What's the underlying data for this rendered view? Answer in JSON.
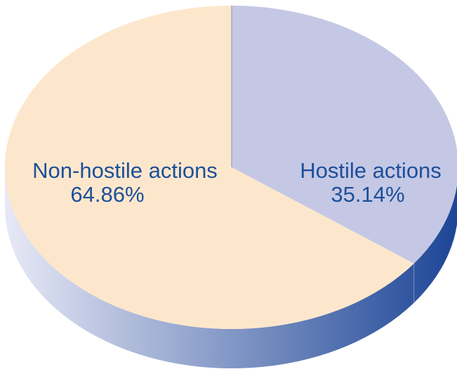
{
  "chart_data": {
    "type": "pie",
    "style": "3d",
    "slices": [
      {
        "label": "Hostile actions",
        "value": 35.14,
        "value_label": "35.14%",
        "color": "#c5c8e4"
      },
      {
        "label": "Non-hostile actions",
        "value": 64.86,
        "value_label": "64.86%",
        "color": "#fde7cc"
      }
    ],
    "side_colors": {
      "light": "#e8e9f6",
      "dark": "#1c4596"
    },
    "text_color": "#1d4f9a"
  }
}
